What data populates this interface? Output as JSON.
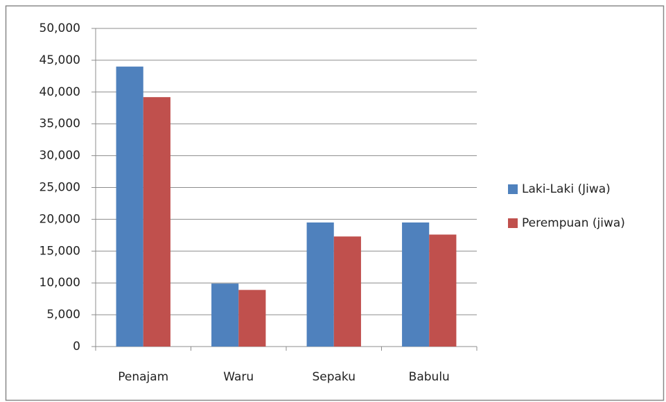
{
  "chart_data": {
    "type": "bar",
    "categories": [
      "Penajam",
      "Waru",
      "Sepaku",
      "Babulu"
    ],
    "series": [
      {
        "name": "Laki-Laki (Jiwa)",
        "color": "#4f81bd",
        "values": [
          44000,
          9900,
          19500,
          19500
        ]
      },
      {
        "name": "Perempuan (jiwa)",
        "color": "#c0504d",
        "values": [
          39200,
          8900,
          17300,
          17600
        ]
      }
    ],
    "ylim": [
      0,
      50000
    ],
    "yticks": [
      0,
      {
        "value": 5000,
        "label": "5,000"
      },
      {
        "value": 10000,
        "label": "10,000"
      },
      {
        "value": 15000,
        "label": "15,000"
      },
      {
        "value": 20000,
        "label": "20,000"
      },
      {
        "value": 25000,
        "label": "25,000"
      },
      {
        "value": 30000,
        "label": "30,000"
      },
      {
        "value": 35000,
        "label": "35,000"
      },
      {
        "value": 40000,
        "label": "40,000"
      },
      {
        "value": 45000,
        "label": "45,000"
      },
      {
        "value": 50000,
        "label": "50,000"
      }
    ],
    "grid": true,
    "legend": "right"
  }
}
